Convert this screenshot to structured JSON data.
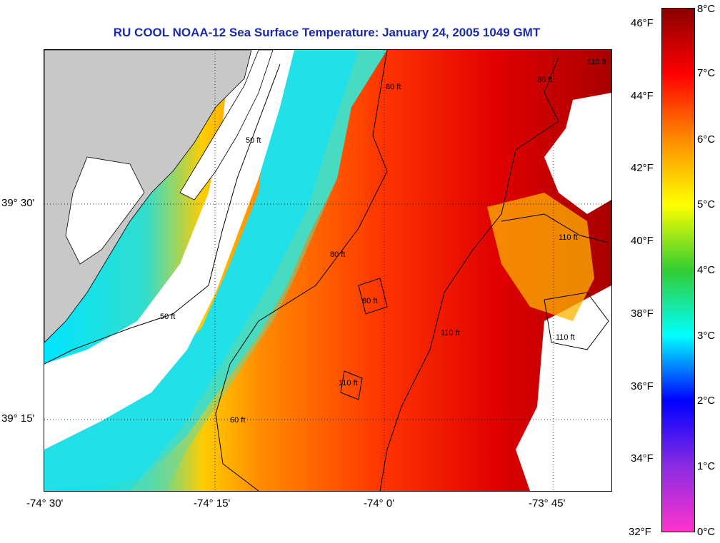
{
  "title": "RU COOL  NOAA-12  Sea Surface Temperature:  January 24, 2005 1049 GMT",
  "axes": {
    "x_ticks": [
      "-74° 30'",
      "-74° 15'",
      "-74° 0'",
      "-73° 45'"
    ],
    "y_ticks": [
      "39° 30'",
      "39° 15'"
    ]
  },
  "contour_labels": [
    "50 ft",
    "50 ft",
    "80 ft",
    "80 ft",
    "80 ft",
    "80 ft",
    "110 ft",
    "110 ft",
    "110 ft",
    "110 ft",
    "60 ft",
    "110 ft"
  ],
  "colorbar": {
    "fahrenheit": [
      "46°F",
      "44°F",
      "42°F",
      "40°F",
      "38°F",
      "36°F",
      "34°F",
      "32°F"
    ],
    "celsius": [
      "8°C",
      "7°C",
      "6°C",
      "5°C",
      "4°C",
      "3°C",
      "2°C",
      "1°C",
      "0°C"
    ],
    "colors": [
      "#8b0000",
      "#ff0000",
      "#ff8c00",
      "#ffff00",
      "#32cd32",
      "#00ffff",
      "#0000ff",
      "#8a2be2",
      "#ff33cc"
    ]
  },
  "map_colors": {
    "land": "#c8c8c8",
    "cloud": "#ffffff",
    "grid": "#000000"
  }
}
